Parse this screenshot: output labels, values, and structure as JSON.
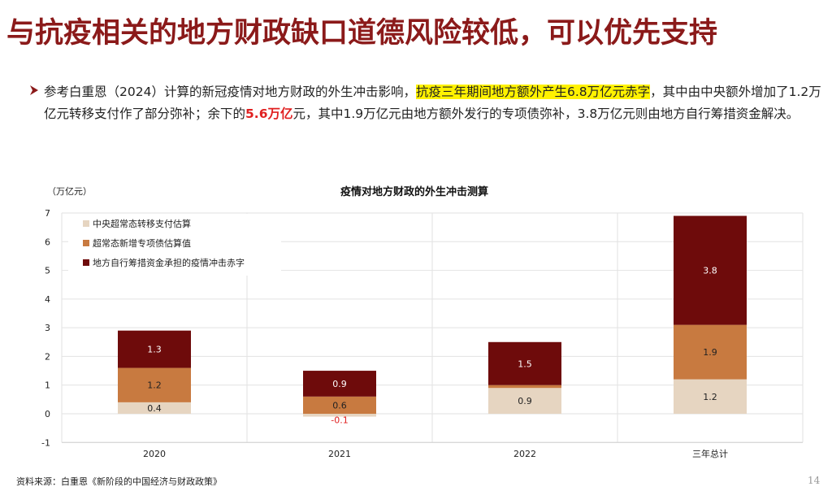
{
  "page": {
    "title": "与抗疫相关的地方财政缺口道德风险较低，可以优先支持",
    "bullet": {
      "part1": "参考白重恩（2024）计算的新冠疫情对地方财政的外生冲击影响，",
      "highlight": "抗疫三年期间地方额外产生6.8万亿元赤字",
      "part2": "，其中由中央额外增加了1.2万亿元转移支付作了部分弥补；余下的",
      "red": "5.6万亿",
      "part3": "元，其中1.9万亿元由地方额外发行的专项债弥补，3.8万亿元则由地方自行筹措资金解决。"
    },
    "source": "资料来源：白重恩《新阶段的中国经济与财政政策》",
    "page_number": "14"
  },
  "chart_data": {
    "type": "bar",
    "stacked": true,
    "title": "疫情对地方财政的外生冲击测算",
    "ylabel": "（万亿元）",
    "categories": [
      "2020",
      "2021",
      "2022",
      "三年总计"
    ],
    "ylim": [
      -1,
      7
    ],
    "yticks": [
      -1,
      0,
      1,
      2,
      3,
      4,
      5,
      6,
      7
    ],
    "grid": true,
    "legend_position": "top-left",
    "series": [
      {
        "name": "中央超常态转移支付估算",
        "color": "#e6d5c1",
        "values": [
          0.4,
          -0.1,
          0.9,
          1.2
        ]
      },
      {
        "name": "超常态新增专项债估算值",
        "color": "#c87a40",
        "values": [
          1.2,
          0.6,
          0.1,
          1.9
        ]
      },
      {
        "name": "地方自行筹措资金承担的疫情冲击赤字",
        "color": "#6e0b0b",
        "values": [
          1.3,
          0.9,
          1.5,
          3.8
        ]
      }
    ],
    "data_labels": [
      [
        "0.4",
        "-0.1",
        "0.9",
        "1.2"
      ],
      [
        "1.2",
        "0.6",
        "0.1",
        "1.9"
      ],
      [
        "1.3",
        "0.9",
        "1.5",
        "3.8"
      ]
    ]
  }
}
